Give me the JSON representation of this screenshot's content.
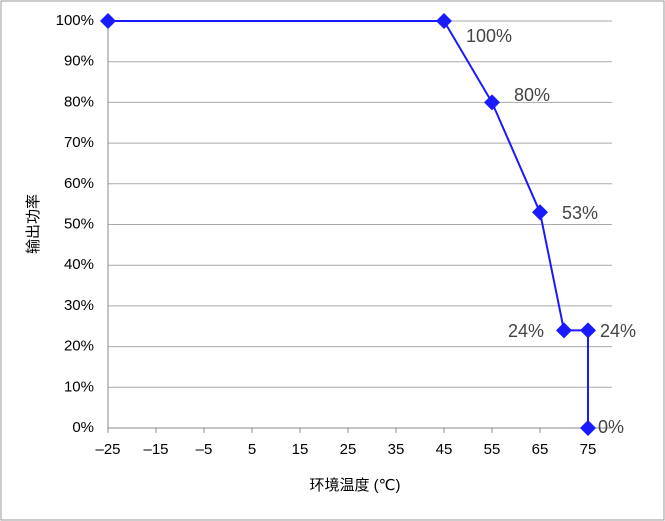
{
  "chart_data": {
    "type": "line",
    "x_label": "环境温度 (℃)",
    "y_label": "输出功率",
    "x": [
      -25,
      45,
      55,
      65,
      70,
      75,
      75
    ],
    "values": [
      100,
      100,
      80,
      53,
      24,
      24,
      0
    ],
    "value_labels": [
      null,
      "100%",
      "80%",
      "53%",
      "24%",
      "24%",
      "0%"
    ],
    "color": "#1a1aff",
    "xlim": [
      -25,
      80
    ],
    "xticks": [
      {
        "value": -25,
        "label": "–25"
      },
      {
        "value": -15,
        "label": "–15"
      },
      {
        "value": -5,
        "label": "–5"
      },
      5,
      15,
      25,
      35,
      45,
      55,
      65,
      75
    ],
    "ylim": [
      0,
      100
    ],
    "yticks": [
      {
        "value": 0,
        "label": "0%"
      },
      {
        "value": 10,
        "label": "10%"
      },
      {
        "value": 20,
        "label": "20%"
      },
      {
        "value": 30,
        "label": "30%"
      },
      {
        "value": 40,
        "label": "40%"
      },
      {
        "value": 50,
        "label": "50%"
      },
      {
        "value": 60,
        "label": "60%"
      },
      {
        "value": 70,
        "label": "70%"
      },
      {
        "value": 80,
        "label": "80%"
      },
      {
        "value": 90,
        "label": "90%"
      },
      {
        "value": 100,
        "label": "100%"
      }
    ],
    "grid": true
  }
}
